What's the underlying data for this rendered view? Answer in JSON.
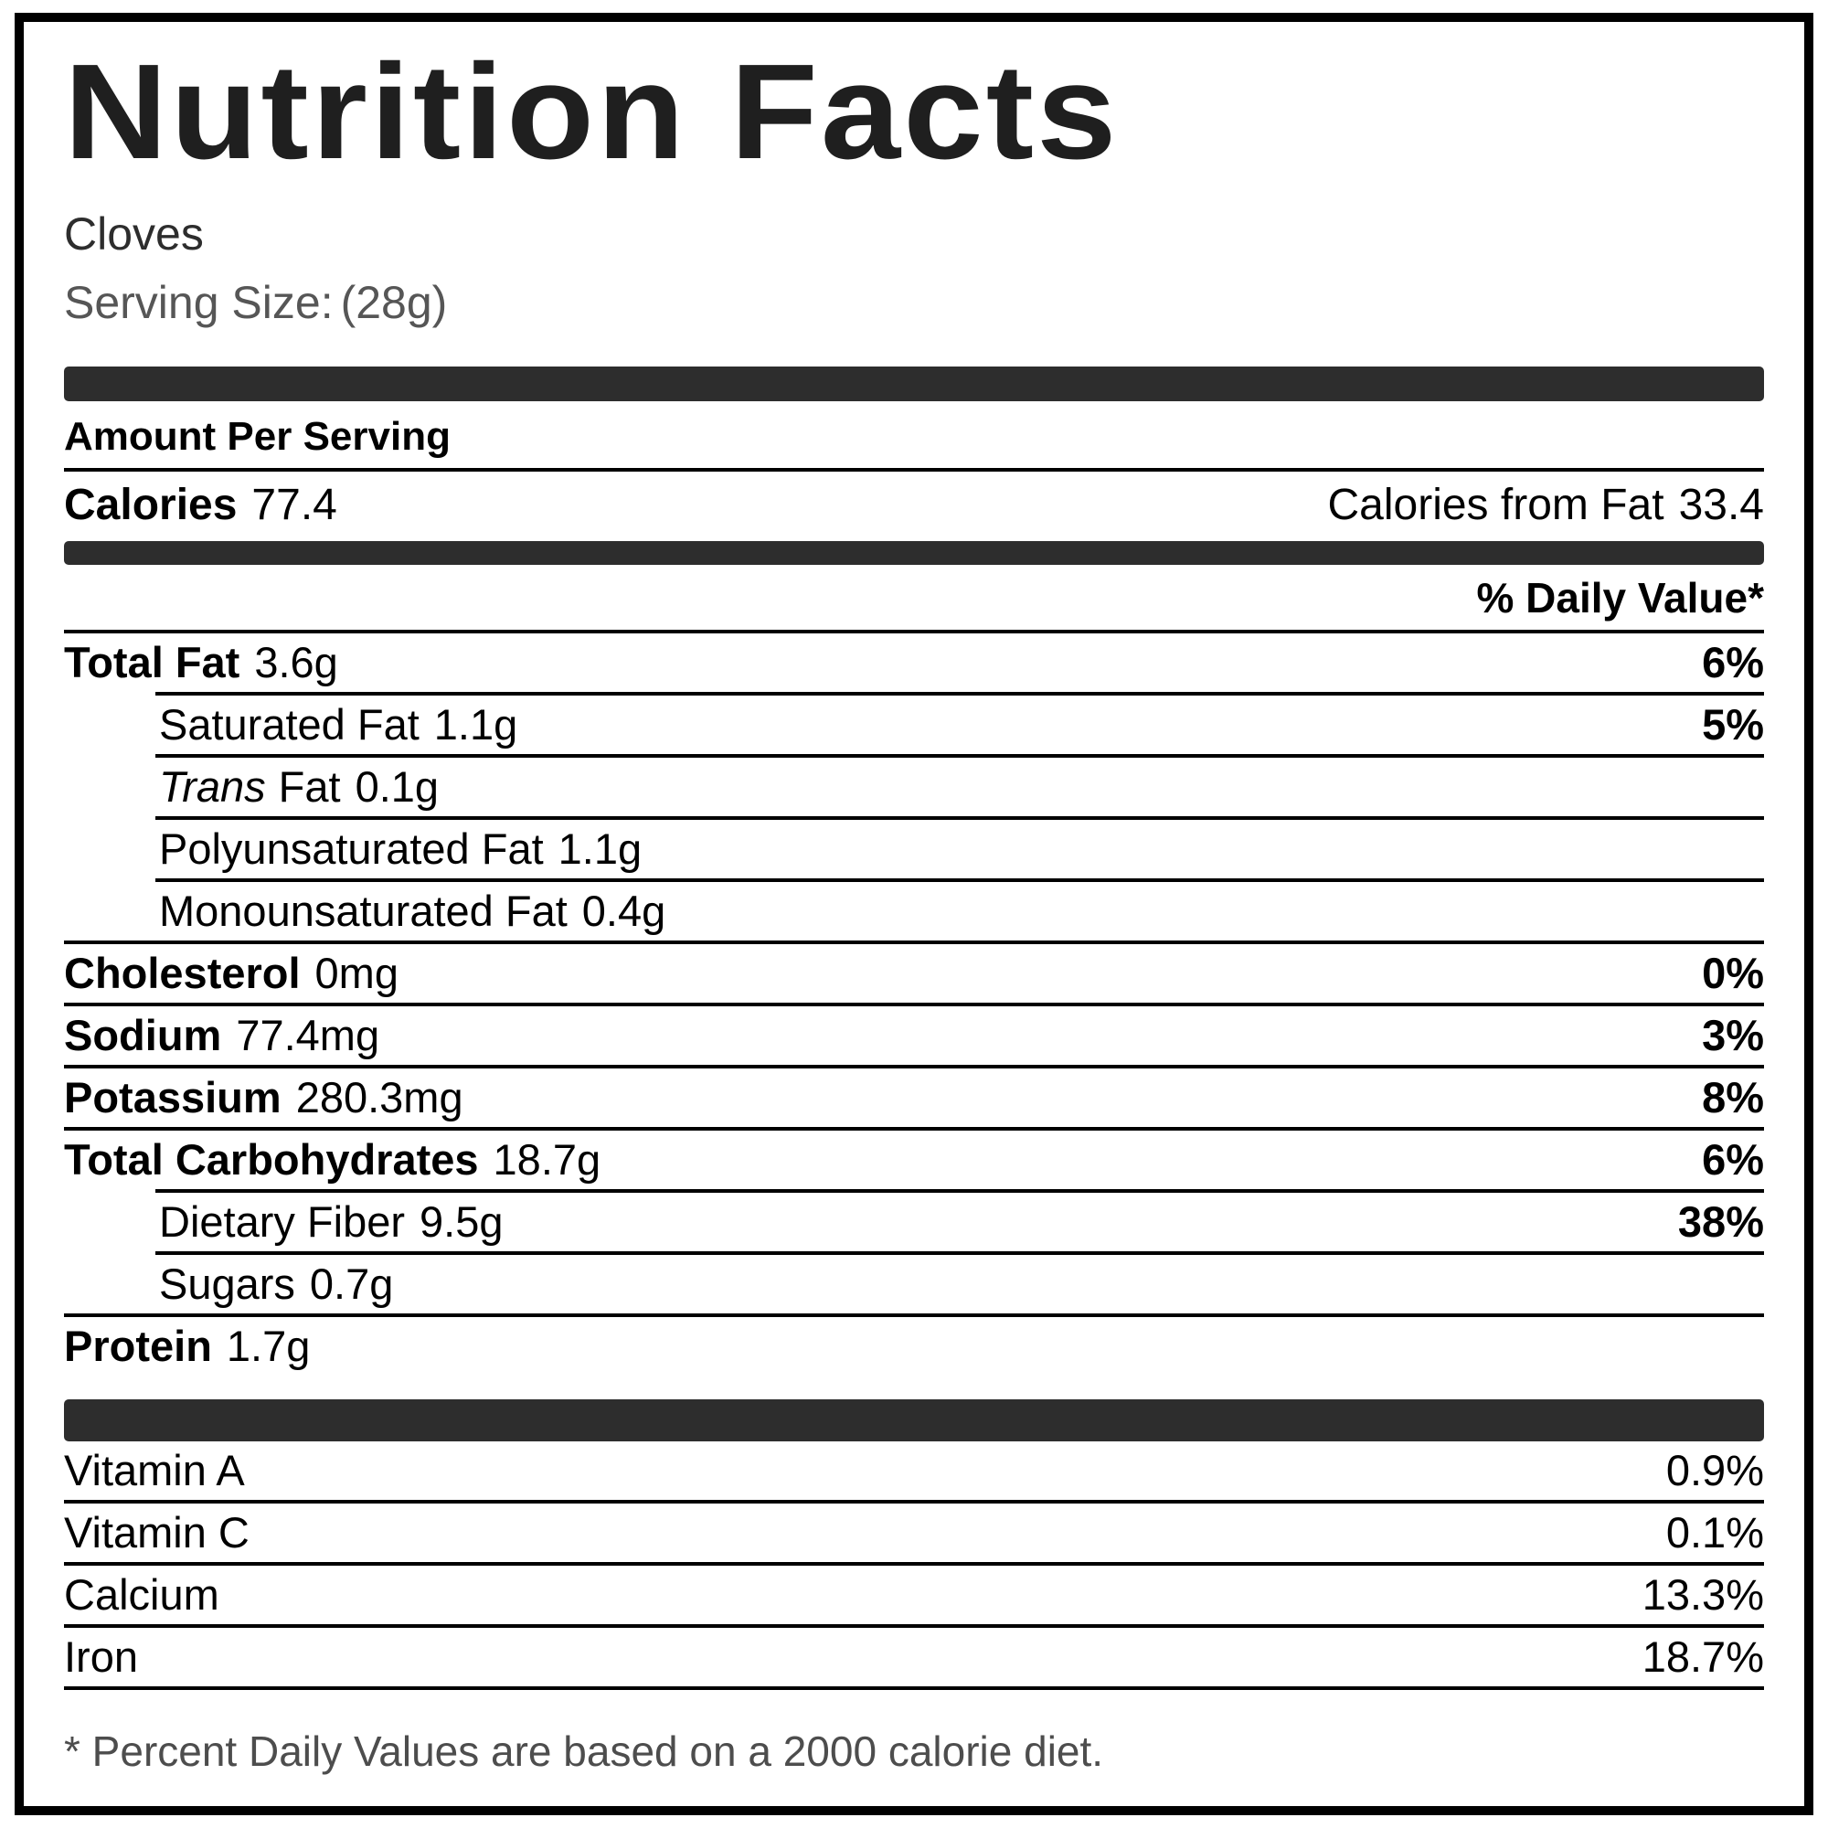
{
  "title": "Nutrition Facts",
  "product_name": "Cloves",
  "serving": {
    "label": "Serving Size:",
    "value": "(28g)"
  },
  "sections": {
    "amount_per_serving": "Amount Per Serving",
    "daily_value_header": "% Daily Value*"
  },
  "calories": {
    "label": "Calories",
    "value": "77.4",
    "from_fat_label": "Calories from Fat",
    "from_fat_value": "33.4"
  },
  "nutrients": [
    {
      "name": "Total Fat",
      "amount": "3.6g",
      "dv": "6%"
    },
    {
      "name": "Saturated Fat",
      "amount": "1.1g",
      "dv": "5%"
    },
    {
      "name_italic": "Trans",
      "name": "Fat",
      "amount": "0.1g",
      "dv": ""
    },
    {
      "name": "Polyunsaturated Fat",
      "amount": "1.1g",
      "dv": ""
    },
    {
      "name": "Monounsaturated Fat",
      "amount": "0.4g",
      "dv": ""
    },
    {
      "name": "Cholesterol",
      "amount": "0mg",
      "dv": "0%"
    },
    {
      "name": "Sodium",
      "amount": "77.4mg",
      "dv": "3%"
    },
    {
      "name": "Potassium",
      "amount": "280.3mg",
      "dv": "8%"
    },
    {
      "name": "Total Carbohydrates",
      "amount": "18.7g",
      "dv": "6%"
    },
    {
      "name": "Dietary Fiber",
      "amount": "9.5g",
      "dv": "38%"
    },
    {
      "name": "Sugars",
      "amount": "0.7g",
      "dv": ""
    },
    {
      "name": "Protein",
      "amount": "1.7g",
      "dv": ""
    }
  ],
  "vitamins": [
    {
      "name": "Vitamin A",
      "dv": "0.9%"
    },
    {
      "name": "Vitamin C",
      "dv": "0.1%"
    },
    {
      "name": "Calcium",
      "dv": "13.3%"
    },
    {
      "name": "Iron",
      "dv": "18.7%"
    }
  ],
  "footnote": "* Percent Daily Values are based on a 2000 calorie diet.",
  "colors": {
    "bar": "#2d2d2d",
    "rule": "#000000",
    "muted_text": "#4d4d4d"
  }
}
